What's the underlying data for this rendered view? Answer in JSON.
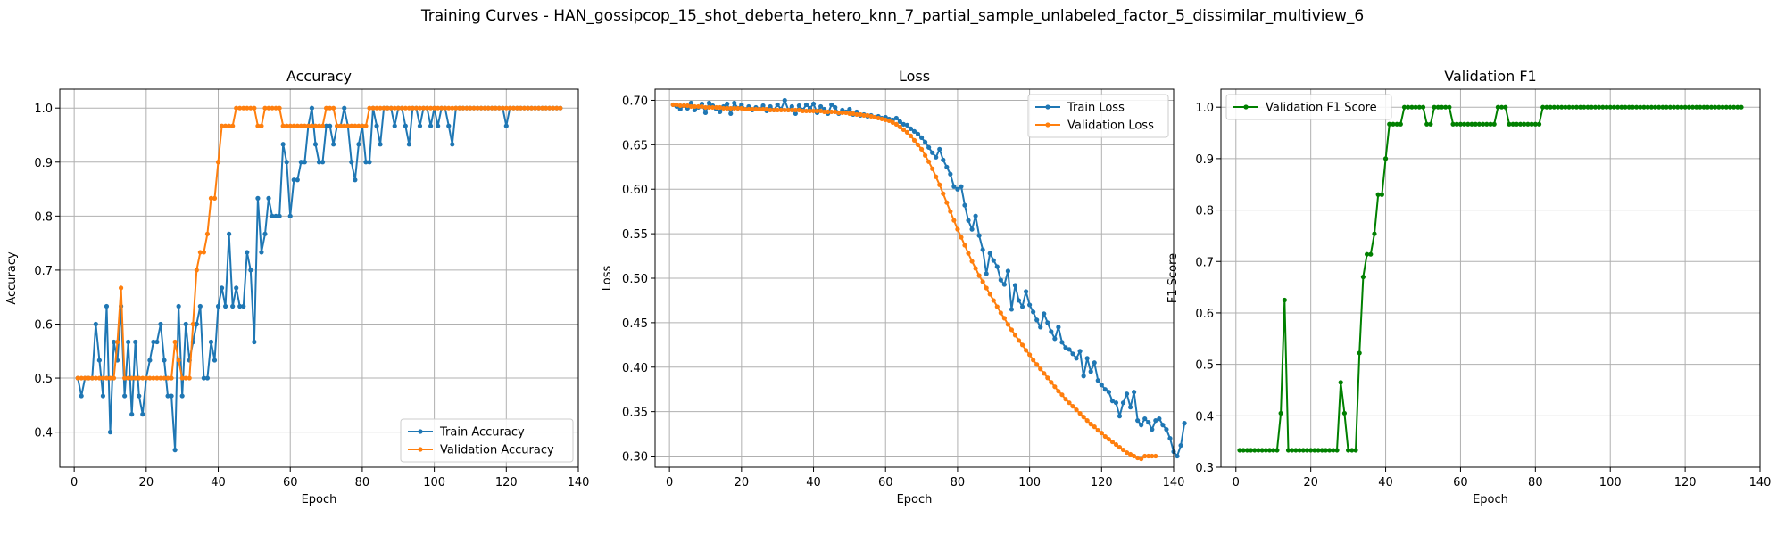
{
  "figure": {
    "title": "Training Curves - HAN_gossipcop_15_shot_deberta_hetero_knn_7_partial_sample_unlabeled_factor_5_dissimilar_multiview_6"
  },
  "chart_data": [
    {
      "type": "line",
      "title": "Accuracy",
      "xlabel": "Epoch",
      "ylabel": "Accuracy",
      "xlim": [
        -4,
        140
      ],
      "ylim": [
        0.335,
        1.035
      ],
      "xticks": [
        0,
        20,
        40,
        60,
        80,
        100,
        120,
        140
      ],
      "yticks": [
        0.4,
        0.5,
        0.6,
        0.7,
        0.8,
        0.9,
        1.0
      ],
      "ytick_labels": [
        "0.4",
        "0.5",
        "0.6",
        "0.7",
        "0.8",
        "0.9",
        "1.0"
      ],
      "grid": true,
      "legend_position": "lower-right",
      "series": [
        {
          "name": "Train Accuracy",
          "color": "#1f77b4",
          "values": [
            0.5,
            0.467,
            0.5,
            0.5,
            0.5,
            0.6,
            0.533,
            0.467,
            0.633,
            0.4,
            0.567,
            0.533,
            0.633,
            0.467,
            0.567,
            0.433,
            0.567,
            0.467,
            0.433,
            0.5,
            0.533,
            0.567,
            0.567,
            0.6,
            0.533,
            0.467,
            0.467,
            0.367,
            0.633,
            0.467,
            0.6,
            0.533,
            0.567,
            0.6,
            0.633,
            0.5,
            0.5,
            0.567,
            0.533,
            0.633,
            0.667,
            0.633,
            0.767,
            0.633,
            0.667,
            0.633,
            0.633,
            0.733,
            0.7,
            0.567,
            0.833,
            0.733,
            0.767,
            0.833,
            0.8,
            0.8,
            0.8,
            0.933,
            0.9,
            0.8,
            0.867,
            0.867,
            0.9,
            0.9,
            0.967,
            1.0,
            0.933,
            0.9,
            0.9,
            0.967,
            0.967,
            0.933,
            0.967,
            0.967,
            1.0,
            0.967,
            0.9,
            0.867,
            0.933,
            0.967,
            0.9,
            0.9,
            1.0,
            0.967,
            0.933,
            1.0,
            1.0,
            1.0,
            0.967,
            1.0,
            1.0,
            0.967,
            0.933,
            1.0,
            1.0,
            0.967,
            1.0,
            1.0,
            0.967,
            1.0,
            0.967,
            1.0,
            1.0,
            0.967,
            0.933,
            1.0,
            1.0,
            1.0,
            1.0,
            1.0,
            1.0,
            1.0,
            1.0,
            1.0,
            1.0,
            1.0,
            1.0,
            1.0,
            1.0,
            0.967,
            1.0,
            1.0,
            1.0,
            1.0,
            1.0,
            1.0,
            1.0,
            1.0,
            1.0,
            1.0,
            1.0,
            1.0,
            1.0,
            1.0,
            1.0
          ]
        },
        {
          "name": "Validation Accuracy",
          "color": "#ff7f0e",
          "values": [
            0.5,
            0.5,
            0.5,
            0.5,
            0.5,
            0.5,
            0.5,
            0.5,
            0.5,
            0.5,
            0.5,
            0.567,
            0.667,
            0.5,
            0.5,
            0.5,
            0.5,
            0.5,
            0.5,
            0.5,
            0.5,
            0.5,
            0.5,
            0.5,
            0.5,
            0.5,
            0.5,
            0.567,
            0.533,
            0.5,
            0.5,
            0.5,
            0.6,
            0.7,
            0.733,
            0.733,
            0.767,
            0.833,
            0.833,
            0.9,
            0.967,
            0.967,
            0.967,
            0.967,
            1.0,
            1.0,
            1.0,
            1.0,
            1.0,
            1.0,
            0.967,
            0.967,
            1.0,
            1.0,
            1.0,
            1.0,
            1.0,
            0.967,
            0.967,
            0.967,
            0.967,
            0.967,
            0.967,
            0.967,
            0.967,
            0.967,
            0.967,
            0.967,
            0.967,
            1.0,
            1.0,
            1.0,
            0.967,
            0.967,
            0.967,
            0.967,
            0.967,
            0.967,
            0.967,
            0.967,
            0.967,
            1.0,
            1.0,
            1.0,
            1.0,
            1.0,
            1.0,
            1.0,
            1.0,
            1.0,
            1.0,
            1.0,
            1.0,
            1.0,
            1.0,
            1.0,
            1.0,
            1.0,
            1.0,
            1.0,
            1.0,
            1.0,
            1.0,
            1.0,
            1.0,
            1.0,
            1.0,
            1.0,
            1.0,
            1.0,
            1.0,
            1.0,
            1.0,
            1.0,
            1.0,
            1.0,
            1.0,
            1.0,
            1.0,
            1.0,
            1.0,
            1.0,
            1.0,
            1.0,
            1.0,
            1.0,
            1.0,
            1.0,
            1.0,
            1.0,
            1.0,
            1.0,
            1.0,
            1.0,
            1.0
          ]
        }
      ]
    },
    {
      "type": "line",
      "title": "Loss",
      "xlabel": "Epoch",
      "ylabel": "Loss",
      "xlim": [
        -4,
        140
      ],
      "ylim": [
        0.2875,
        0.7125
      ],
      "xticks": [
        0,
        20,
        40,
        60,
        80,
        100,
        120,
        140
      ],
      "yticks": [
        0.3,
        0.35,
        0.4,
        0.45,
        0.5,
        0.55,
        0.6,
        0.65,
        0.7
      ],
      "ytick_labels": [
        "0.30",
        "0.35",
        "0.40",
        "0.45",
        "0.50",
        "0.55",
        "0.60",
        "0.65",
        "0.70"
      ],
      "grid": true,
      "legend_position": "top-right",
      "series": [
        {
          "name": "Train Loss",
          "color": "#1f77b4",
          "values": [
            0.695,
            0.693,
            0.69,
            0.694,
            0.691,
            0.697,
            0.689,
            0.692,
            0.696,
            0.686,
            0.697,
            0.694,
            0.69,
            0.687,
            0.693,
            0.696,
            0.685,
            0.697,
            0.691,
            0.695,
            0.69,
            0.693,
            0.689,
            0.692,
            0.69,
            0.694,
            0.688,
            0.693,
            0.689,
            0.695,
            0.69,
            0.7,
            0.689,
            0.693,
            0.685,
            0.694,
            0.689,
            0.695,
            0.691,
            0.696,
            0.686,
            0.693,
            0.69,
            0.685,
            0.695,
            0.692,
            0.685,
            0.689,
            0.687,
            0.69,
            0.684,
            0.687,
            0.683,
            0.684,
            0.682,
            0.683,
            0.681,
            0.682,
            0.68,
            0.681,
            0.679,
            0.678,
            0.68,
            0.676,
            0.673,
            0.672,
            0.668,
            0.665,
            0.662,
            0.658,
            0.653,
            0.647,
            0.641,
            0.636,
            0.645,
            0.633,
            0.625,
            0.617,
            0.603,
            0.6,
            0.603,
            0.582,
            0.565,
            0.555,
            0.57,
            0.548,
            0.532,
            0.505,
            0.528,
            0.52,
            0.513,
            0.498,
            0.493,
            0.508,
            0.465,
            0.492,
            0.475,
            0.468,
            0.485,
            0.47,
            0.462,
            0.453,
            0.445,
            0.46,
            0.45,
            0.44,
            0.432,
            0.445,
            0.428,
            0.422,
            0.42,
            0.415,
            0.41,
            0.418,
            0.39,
            0.41,
            0.395,
            0.405,
            0.385,
            0.38,
            0.375,
            0.372,
            0.362,
            0.36,
            0.345,
            0.36,
            0.37,
            0.355,
            0.372,
            0.34,
            0.335,
            0.342,
            0.338,
            0.33,
            0.34,
            0.342,
            0.335,
            0.33,
            0.32,
            0.305,
            0.3,
            0.312,
            0.337
          ]
        },
        {
          "name": "Validation Loss",
          "color": "#ff7f0e",
          "values": [
            0.695,
            0.695,
            0.694,
            0.694,
            0.694,
            0.693,
            0.693,
            0.693,
            0.693,
            0.692,
            0.692,
            0.692,
            0.692,
            0.692,
            0.691,
            0.691,
            0.691,
            0.691,
            0.691,
            0.691,
            0.69,
            0.69,
            0.69,
            0.69,
            0.69,
            0.69,
            0.69,
            0.689,
            0.689,
            0.689,
            0.689,
            0.689,
            0.689,
            0.689,
            0.689,
            0.689,
            0.688,
            0.688,
            0.688,
            0.688,
            0.688,
            0.688,
            0.687,
            0.687,
            0.687,
            0.687,
            0.686,
            0.686,
            0.686,
            0.685,
            0.685,
            0.684,
            0.684,
            0.683,
            0.683,
            0.682,
            0.681,
            0.68,
            0.679,
            0.678,
            0.677,
            0.675,
            0.673,
            0.67,
            0.667,
            0.664,
            0.66,
            0.655,
            0.65,
            0.645,
            0.638,
            0.631,
            0.623,
            0.614,
            0.605,
            0.595,
            0.585,
            0.575,
            0.565,
            0.555,
            0.546,
            0.537,
            0.528,
            0.519,
            0.511,
            0.503,
            0.496,
            0.489,
            0.482,
            0.475,
            0.468,
            0.461,
            0.455,
            0.448,
            0.442,
            0.436,
            0.43,
            0.425,
            0.419,
            0.414,
            0.408,
            0.403,
            0.398,
            0.393,
            0.388,
            0.383,
            0.378,
            0.373,
            0.369,
            0.364,
            0.36,
            0.356,
            0.352,
            0.348,
            0.344,
            0.34,
            0.336,
            0.333,
            0.329,
            0.326,
            0.322,
            0.319,
            0.316,
            0.313,
            0.31,
            0.307,
            0.304,
            0.302,
            0.3,
            0.298,
            0.297,
            0.3,
            0.3,
            0.3,
            0.3
          ]
        }
      ]
    },
    {
      "type": "line",
      "title": "Validation F1",
      "xlabel": "Epoch",
      "ylabel": "F1 Score",
      "xlim": [
        -4,
        140
      ],
      "ylim": [
        0.3,
        1.035
      ],
      "xticks": [
        0,
        20,
        40,
        60,
        80,
        100,
        120,
        140
      ],
      "yticks": [
        0.3,
        0.4,
        0.5,
        0.6,
        0.7,
        0.8,
        0.9,
        1.0
      ],
      "ytick_labels": [
        "0.3",
        "0.4",
        "0.5",
        "0.6",
        "0.7",
        "0.8",
        "0.9",
        "1.0"
      ],
      "grid": true,
      "legend_position": "top-left",
      "series": [
        {
          "name": "Validation F1 Score",
          "color": "#008000",
          "values": [
            0.333,
            0.333,
            0.333,
            0.333,
            0.333,
            0.333,
            0.333,
            0.333,
            0.333,
            0.333,
            0.333,
            0.405,
            0.625,
            0.333,
            0.333,
            0.333,
            0.333,
            0.333,
            0.333,
            0.333,
            0.333,
            0.333,
            0.333,
            0.333,
            0.333,
            0.333,
            0.333,
            0.465,
            0.405,
            0.333,
            0.333,
            0.333,
            0.522,
            0.67,
            0.714,
            0.714,
            0.754,
            0.83,
            0.83,
            0.9,
            0.967,
            0.967,
            0.967,
            0.967,
            1.0,
            1.0,
            1.0,
            1.0,
            1.0,
            1.0,
            0.967,
            0.967,
            1.0,
            1.0,
            1.0,
            1.0,
            1.0,
            0.967,
            0.967,
            0.967,
            0.967,
            0.967,
            0.967,
            0.967,
            0.967,
            0.967,
            0.967,
            0.967,
            0.967,
            1.0,
            1.0,
            1.0,
            0.967,
            0.967,
            0.967,
            0.967,
            0.967,
            0.967,
            0.967,
            0.967,
            0.967,
            1.0,
            1.0,
            1.0,
            1.0,
            1.0,
            1.0,
            1.0,
            1.0,
            1.0,
            1.0,
            1.0,
            1.0,
            1.0,
            1.0,
            1.0,
            1.0,
            1.0,
            1.0,
            1.0,
            1.0,
            1.0,
            1.0,
            1.0,
            1.0,
            1.0,
            1.0,
            1.0,
            1.0,
            1.0,
            1.0,
            1.0,
            1.0,
            1.0,
            1.0,
            1.0,
            1.0,
            1.0,
            1.0,
            1.0,
            1.0,
            1.0,
            1.0,
            1.0,
            1.0,
            1.0,
            1.0,
            1.0,
            1.0,
            1.0,
            1.0,
            1.0,
            1.0,
            1.0,
            1.0
          ]
        }
      ]
    }
  ]
}
